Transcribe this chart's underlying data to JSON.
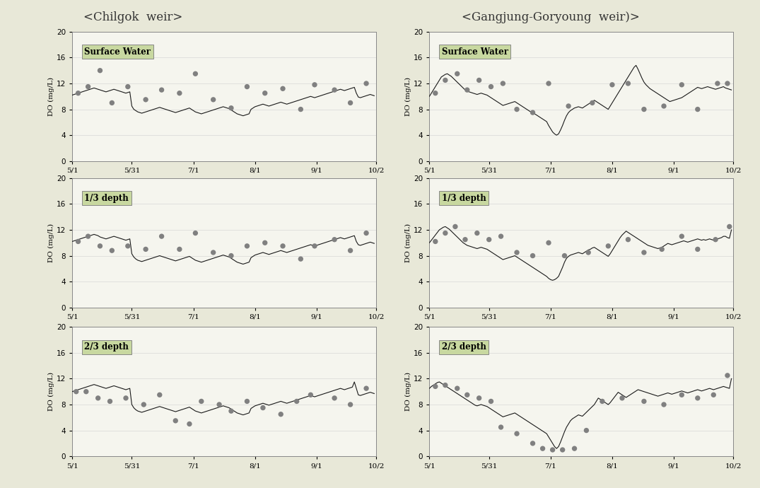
{
  "title_left": "<Chilgok  weir>",
  "title_right": "<Gangjung-Goryoung  weir)>",
  "xlabel": "",
  "ylabel": "DO (mg/L)",
  "ylim": [
    0,
    20
  ],
  "yticks": [
    0,
    4,
    8,
    12,
    16,
    20
  ],
  "xtick_labels": [
    "5/1",
    "5/31",
    "7/1",
    "8/1",
    "9/1",
    "10/2"
  ],
  "subplot_labels": [
    "Surface Water",
    "1/3 depth",
    "2/3 depth"
  ],
  "bg_color": "#e8e8d8",
  "plot_bg_color": "#f5f5ee",
  "line_color": "#1a1a1a",
  "dot_color": "#808080",
  "label_box_color": "#c8d8a0",
  "n_points": 153,
  "chilgok": {
    "surface": {
      "line": [
        10.2,
        10.3,
        10.4,
        10.5,
        10.6,
        10.7,
        10.8,
        10.9,
        11.0,
        11.1,
        11.2,
        11.3,
        11.2,
        11.1,
        11.0,
        10.9,
        10.8,
        10.7,
        10.8,
        10.9,
        11.0,
        11.1,
        11.0,
        10.9,
        10.8,
        10.7,
        10.6,
        10.5,
        10.6,
        10.7,
        8.5,
        8.0,
        7.8,
        7.6,
        7.5,
        7.4,
        7.5,
        7.6,
        7.7,
        7.8,
        7.9,
        8.0,
        8.1,
        8.2,
        8.3,
        8.2,
        8.1,
        8.0,
        7.9,
        7.8,
        7.7,
        7.6,
        7.5,
        7.6,
        7.7,
        7.8,
        7.9,
        8.0,
        8.1,
        8.2,
        8.0,
        7.8,
        7.6,
        7.5,
        7.4,
        7.3,
        7.4,
        7.5,
        7.6,
        7.7,
        7.8,
        7.9,
        8.0,
        8.1,
        8.2,
        8.3,
        8.4,
        8.3,
        8.2,
        8.1,
        7.9,
        7.7,
        7.5,
        7.3,
        7.2,
        7.1,
        7.0,
        7.1,
        7.2,
        7.3,
        8.0,
        8.2,
        8.4,
        8.5,
        8.6,
        8.7,
        8.8,
        8.7,
        8.6,
        8.5,
        8.6,
        8.7,
        8.8,
        8.9,
        9.0,
        9.1,
        9.0,
        8.9,
        8.8,
        8.9,
        9.0,
        9.1,
        9.2,
        9.3,
        9.4,
        9.5,
        9.6,
        9.7,
        9.8,
        9.9,
        10.0,
        9.9,
        9.8,
        9.9,
        10.0,
        10.1,
        10.2,
        10.3,
        10.4,
        10.5,
        10.6,
        10.7,
        10.8,
        10.9,
        11.0,
        11.1,
        11.0,
        10.9,
        11.0,
        11.1,
        11.2,
        11.3,
        11.4,
        10.5,
        9.9,
        9.8,
        9.9,
        10.0,
        10.1,
        10.2,
        10.3,
        10.2,
        10.1
      ],
      "obs_x": [
        3,
        8,
        14,
        20,
        28,
        37,
        45,
        54,
        62,
        71,
        80,
        88,
        97,
        106,
        115,
        122,
        132,
        140,
        148
      ],
      "obs_y": [
        10.5,
        11.5,
        14.0,
        9.0,
        11.5,
        9.5,
        11.0,
        10.5,
        13.5,
        9.5,
        8.2,
        11.5,
        10.5,
        11.2,
        8.0,
        11.8,
        11.0,
        9.0,
        12.0
      ]
    },
    "third": {
      "line": [
        10.2,
        10.3,
        10.4,
        10.5,
        10.6,
        10.7,
        10.8,
        10.9,
        11.0,
        11.1,
        11.2,
        11.3,
        11.2,
        11.1,
        10.9,
        10.8,
        10.7,
        10.6,
        10.7,
        10.8,
        10.9,
        11.0,
        10.9,
        10.8,
        10.7,
        10.6,
        10.5,
        10.4,
        10.5,
        10.6,
        8.3,
        7.8,
        7.5,
        7.3,
        7.2,
        7.1,
        7.2,
        7.3,
        7.4,
        7.5,
        7.6,
        7.7,
        7.8,
        7.9,
        8.0,
        7.9,
        7.8,
        7.7,
        7.6,
        7.5,
        7.4,
        7.3,
        7.2,
        7.3,
        7.4,
        7.5,
        7.6,
        7.7,
        7.8,
        7.9,
        7.7,
        7.5,
        7.3,
        7.2,
        7.1,
        7.0,
        7.1,
        7.2,
        7.3,
        7.4,
        7.5,
        7.6,
        7.7,
        7.8,
        7.9,
        8.0,
        8.1,
        8.0,
        7.9,
        7.8,
        7.6,
        7.4,
        7.2,
        7.0,
        6.9,
        6.8,
        6.7,
        6.8,
        6.9,
        7.0,
        7.7,
        7.9,
        8.1,
        8.2,
        8.3,
        8.4,
        8.5,
        8.4,
        8.3,
        8.2,
        8.3,
        8.4,
        8.5,
        8.6,
        8.7,
        8.8,
        8.7,
        8.6,
        8.5,
        8.6,
        8.7,
        8.8,
        8.9,
        9.0,
        9.1,
        9.2,
        9.3,
        9.4,
        9.5,
        9.6,
        9.7,
        9.6,
        9.5,
        9.6,
        9.7,
        9.8,
        9.9,
        10.0,
        10.1,
        10.2,
        10.3,
        10.4,
        10.5,
        10.6,
        10.7,
        10.8,
        10.7,
        10.6,
        10.7,
        10.8,
        10.9,
        11.0,
        11.1,
        10.2,
        9.7,
        9.6,
        9.7,
        9.8,
        9.9,
        10.0,
        10.1,
        10.0,
        9.9
      ],
      "obs_x": [
        3,
        8,
        14,
        20,
        28,
        37,
        45,
        54,
        62,
        71,
        80,
        88,
        97,
        106,
        115,
        122,
        132,
        140,
        148
      ],
      "obs_y": [
        10.2,
        11.0,
        9.5,
        8.8,
        9.5,
        9.0,
        11.0,
        9.0,
        11.5,
        8.5,
        8.0,
        9.5,
        10.0,
        9.5,
        7.5,
        9.5,
        10.5,
        8.8,
        11.5
      ]
    },
    "twothird": {
      "line": [
        10.0,
        10.1,
        10.2,
        10.3,
        10.4,
        10.5,
        10.6,
        10.7,
        10.8,
        10.9,
        11.0,
        11.1,
        11.0,
        10.9,
        10.8,
        10.7,
        10.6,
        10.5,
        10.6,
        10.7,
        10.8,
        10.9,
        10.8,
        10.7,
        10.6,
        10.5,
        10.4,
        10.3,
        10.4,
        10.5,
        8.0,
        7.5,
        7.2,
        7.0,
        6.9,
        6.8,
        6.9,
        7.0,
        7.1,
        7.2,
        7.3,
        7.4,
        7.5,
        7.6,
        7.7,
        7.6,
        7.5,
        7.4,
        7.3,
        7.2,
        7.1,
        7.0,
        6.9,
        7.0,
        7.1,
        7.2,
        7.3,
        7.4,
        7.5,
        7.6,
        7.4,
        7.2,
        7.0,
        6.9,
        6.8,
        6.7,
        6.8,
        6.9,
        7.0,
        7.1,
        7.2,
        7.3,
        7.4,
        7.5,
        7.6,
        7.7,
        7.8,
        7.7,
        7.6,
        7.5,
        7.3,
        7.1,
        6.9,
        6.7,
        6.6,
        6.5,
        6.4,
        6.5,
        6.6,
        6.7,
        7.4,
        7.6,
        7.8,
        7.9,
        8.0,
        8.1,
        8.2,
        8.1,
        8.0,
        7.9,
        8.0,
        8.1,
        8.2,
        8.3,
        8.4,
        8.5,
        8.4,
        8.3,
        8.2,
        8.3,
        8.4,
        8.5,
        8.6,
        8.7,
        8.8,
        8.9,
        9.0,
        9.1,
        9.2,
        9.3,
        9.4,
        9.3,
        9.2,
        9.3,
        9.4,
        9.5,
        9.6,
        9.7,
        9.8,
        9.9,
        10.0,
        10.1,
        10.2,
        10.3,
        10.4,
        10.5,
        10.4,
        10.3,
        10.4,
        10.5,
        10.6,
        10.7,
        11.5,
        10.5,
        9.5,
        9.4,
        9.5,
        9.6,
        9.7,
        9.8,
        9.9,
        9.8,
        9.7
      ],
      "obs_x": [
        2,
        7,
        13,
        19,
        27,
        36,
        44,
        52,
        59,
        65,
        74,
        80,
        88,
        96,
        105,
        113,
        120,
        132,
        140,
        148
      ],
      "obs_y": [
        10.0,
        10.0,
        9.0,
        8.5,
        9.0,
        8.0,
        9.5,
        5.5,
        5.0,
        8.5,
        8.0,
        7.0,
        8.5,
        7.5,
        6.5,
        8.5,
        9.5,
        9.0,
        8.0,
        10.5
      ]
    }
  },
  "gangjung": {
    "surface": {
      "line": [
        10.0,
        10.5,
        11.0,
        11.5,
        12.0,
        12.5,
        13.0,
        13.2,
        13.4,
        13.5,
        13.3,
        13.1,
        12.8,
        12.5,
        12.2,
        11.9,
        11.6,
        11.3,
        11.0,
        10.8,
        10.7,
        10.6,
        10.5,
        10.4,
        10.3,
        10.4,
        10.5,
        10.4,
        10.3,
        10.2,
        10.0,
        9.8,
        9.6,
        9.4,
        9.2,
        9.0,
        8.8,
        8.6,
        8.7,
        8.8,
        8.9,
        9.0,
        9.1,
        9.2,
        9.0,
        8.8,
        8.6,
        8.4,
        8.2,
        8.0,
        7.8,
        7.6,
        7.5,
        7.3,
        7.1,
        6.9,
        6.7,
        6.5,
        6.3,
        6.1,
        5.5,
        5.0,
        4.5,
        4.2,
        4.0,
        4.2,
        4.8,
        5.5,
        6.3,
        7.0,
        7.5,
        7.8,
        8.0,
        8.2,
        8.3,
        8.4,
        8.3,
        8.2,
        8.4,
        8.6,
        8.8,
        9.0,
        9.2,
        9.4,
        9.2,
        9.0,
        8.8,
        8.6,
        8.4,
        8.2,
        8.0,
        8.5,
        9.0,
        9.5,
        10.0,
        10.5,
        11.0,
        11.5,
        12.0,
        12.5,
        13.0,
        13.5,
        14.0,
        14.5,
        14.8,
        14.2,
        13.5,
        12.8,
        12.2,
        11.8,
        11.5,
        11.2,
        11.0,
        10.8,
        10.6,
        10.4,
        10.2,
        10.0,
        9.8,
        9.6,
        9.4,
        9.2,
        9.3,
        9.4,
        9.5,
        9.6,
        9.7,
        9.8,
        10.0,
        10.2,
        10.4,
        10.6,
        10.8,
        11.0,
        11.2,
        11.4,
        11.3,
        11.2,
        11.3,
        11.4,
        11.5,
        11.4,
        11.3,
        11.2,
        11.1,
        11.2,
        11.3,
        11.4,
        11.5,
        11.3,
        11.2,
        11.1,
        11.0
      ],
      "obs_x": [
        3,
        8,
        14,
        19,
        25,
        31,
        37,
        44,
        52,
        60,
        70,
        82,
        92,
        100,
        108,
        118,
        127,
        135,
        145,
        150
      ],
      "obs_y": [
        10.5,
        12.5,
        13.5,
        11.0,
        12.5,
        11.5,
        12.0,
        8.0,
        7.5,
        12.0,
        8.5,
        9.0,
        11.8,
        12.0,
        8.0,
        8.5,
        11.8,
        8.0,
        12.0,
        12.0
      ]
    },
    "third": {
      "line": [
        10.0,
        10.4,
        10.8,
        11.2,
        11.6,
        12.0,
        12.2,
        12.4,
        12.5,
        12.3,
        12.1,
        11.8,
        11.5,
        11.2,
        10.9,
        10.6,
        10.3,
        10.0,
        9.8,
        9.6,
        9.5,
        9.4,
        9.3,
        9.2,
        9.1,
        9.2,
        9.3,
        9.2,
        9.1,
        9.0,
        8.8,
        8.6,
        8.4,
        8.2,
        8.0,
        7.8,
        7.6,
        7.4,
        7.5,
        7.6,
        7.7,
        7.8,
        7.9,
        8.0,
        7.8,
        7.6,
        7.4,
        7.2,
        7.0,
        6.8,
        6.6,
        6.4,
        6.2,
        6.0,
        5.8,
        5.6,
        5.4,
        5.2,
        5.0,
        4.8,
        4.5,
        4.3,
        4.2,
        4.3,
        4.5,
        4.8,
        5.5,
        6.2,
        7.0,
        7.6,
        7.9,
        8.1,
        8.2,
        8.3,
        8.4,
        8.5,
        8.4,
        8.3,
        8.5,
        8.7,
        8.9,
        9.0,
        9.2,
        9.3,
        9.1,
        8.9,
        8.7,
        8.5,
        8.3,
        8.1,
        7.9,
        8.3,
        8.8,
        9.3,
        9.8,
        10.3,
        10.8,
        11.2,
        11.5,
        11.8,
        11.6,
        11.4,
        11.2,
        11.0,
        10.8,
        10.6,
        10.4,
        10.2,
        10.0,
        9.8,
        9.6,
        9.5,
        9.4,
        9.3,
        9.2,
        9.1,
        9.2,
        9.3,
        9.5,
        9.7,
        9.9,
        9.8,
        9.7,
        9.8,
        9.9,
        10.0,
        10.1,
        10.2,
        10.3,
        10.2,
        10.1,
        10.2,
        10.3,
        10.4,
        10.5,
        10.6,
        10.5,
        10.4,
        10.5,
        10.4,
        10.5,
        10.6,
        10.5,
        10.4,
        10.5,
        10.6,
        10.7,
        10.8,
        11.0,
        11.0,
        10.8,
        10.7,
        12.0
      ],
      "obs_x": [
        3,
        8,
        13,
        18,
        24,
        30,
        36,
        44,
        52,
        60,
        68,
        80,
        90,
        100,
        108,
        117,
        127,
        135,
        144,
        151
      ],
      "obs_y": [
        10.2,
        11.5,
        12.5,
        10.5,
        11.5,
        10.5,
        11.0,
        8.5,
        8.0,
        10.0,
        8.0,
        8.5,
        9.5,
        10.5,
        8.5,
        9.0,
        11.0,
        9.0,
        10.5,
        12.5
      ]
    },
    "twothird": {
      "line": [
        10.5,
        10.8,
        11.0,
        11.2,
        11.4,
        11.5,
        11.3,
        11.1,
        10.9,
        10.7,
        10.5,
        10.3,
        10.1,
        9.9,
        9.7,
        9.5,
        9.3,
        9.1,
        8.9,
        8.7,
        8.5,
        8.3,
        8.1,
        7.9,
        7.8,
        7.9,
        8.0,
        7.9,
        7.8,
        7.7,
        7.5,
        7.3,
        7.1,
        6.9,
        6.7,
        6.5,
        6.3,
        6.1,
        6.2,
        6.3,
        6.4,
        6.5,
        6.6,
        6.7,
        6.5,
        6.3,
        6.1,
        5.9,
        5.7,
        5.5,
        5.3,
        5.1,
        4.9,
        4.7,
        4.5,
        4.3,
        4.1,
        3.9,
        3.7,
        3.5,
        3.0,
        2.5,
        2.0,
        1.5,
        1.2,
        1.5,
        2.2,
        3.0,
        3.8,
        4.5,
        5.0,
        5.5,
        5.8,
        6.0,
        6.2,
        6.4,
        6.3,
        6.2,
        6.5,
        6.8,
        7.1,
        7.4,
        7.7,
        8.0,
        8.5,
        9.0,
        8.8,
        8.6,
        8.4,
        8.2,
        8.0,
        8.3,
        8.7,
        9.1,
        9.5,
        9.9,
        9.7,
        9.5,
        9.3,
        9.1,
        9.3,
        9.5,
        9.7,
        9.9,
        10.1,
        10.3,
        10.2,
        10.1,
        10.0,
        9.9,
        9.8,
        9.7,
        9.6,
        9.5,
        9.4,
        9.3,
        9.4,
        9.5,
        9.6,
        9.7,
        9.8,
        9.7,
        9.6,
        9.7,
        9.8,
        9.9,
        10.0,
        10.1,
        10.0,
        9.9,
        9.8,
        9.9,
        10.0,
        10.1,
        10.2,
        10.3,
        10.2,
        10.1,
        10.2,
        10.3,
        10.4,
        10.5,
        10.4,
        10.3,
        10.4,
        10.5,
        10.6,
        10.7,
        10.8,
        10.7,
        10.6,
        10.5,
        12.0
      ],
      "obs_x": [
        3,
        8,
        14,
        19,
        25,
        31,
        36,
        44,
        52,
        57,
        62,
        67,
        73,
        79,
        87,
        97,
        108,
        118,
        127,
        135,
        143,
        150
      ],
      "obs_y": [
        10.8,
        11.0,
        10.5,
        9.5,
        9.0,
        8.5,
        4.5,
        3.5,
        2.0,
        1.2,
        1.0,
        1.0,
        1.2,
        4.0,
        8.5,
        9.0,
        8.5,
        8.0,
        9.5,
        9.0,
        9.5,
        12.5
      ]
    }
  }
}
